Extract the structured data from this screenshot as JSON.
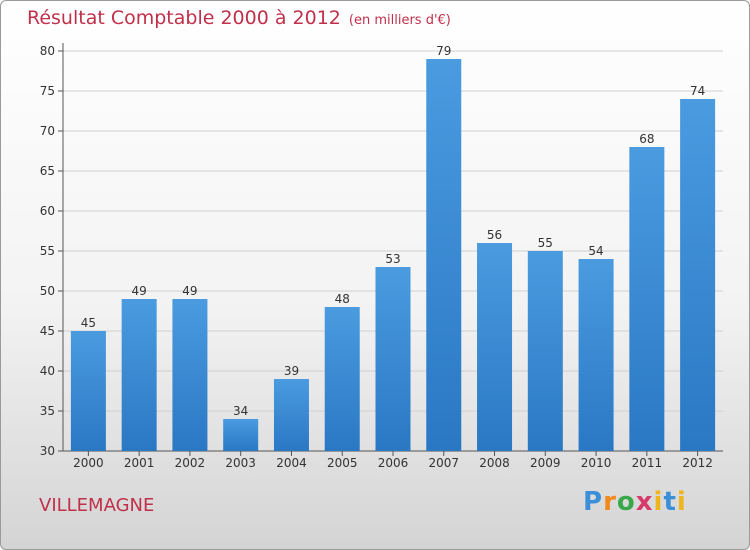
{
  "header": {
    "title": "Résultat Comptable 2000 à 2012",
    "subtitle": "(en milliers d'€)"
  },
  "place": "VILLEMAGNE",
  "logo": {
    "text": "Proxiti"
  },
  "colors": {
    "bar": "#4a9be0",
    "bar_dark": "#2a78c4",
    "title": "#c0304a"
  },
  "chart_data": {
    "type": "bar",
    "title": "Résultat Comptable 2000 à 2012",
    "subtitle": "(en milliers d'€)",
    "xlabel": "",
    "ylabel": "",
    "categories": [
      "2000",
      "2001",
      "2002",
      "2003",
      "2004",
      "2005",
      "2006",
      "2007",
      "2008",
      "2009",
      "2010",
      "2011",
      "2012"
    ],
    "values": [
      45,
      49,
      49,
      34,
      39,
      48,
      53,
      79,
      56,
      55,
      54,
      68,
      74
    ],
    "ylim": [
      30,
      80
    ],
    "yticks": [
      30,
      35,
      40,
      45,
      50,
      55,
      60,
      65,
      70,
      75,
      80
    ],
    "grid": true,
    "legend": "none"
  }
}
